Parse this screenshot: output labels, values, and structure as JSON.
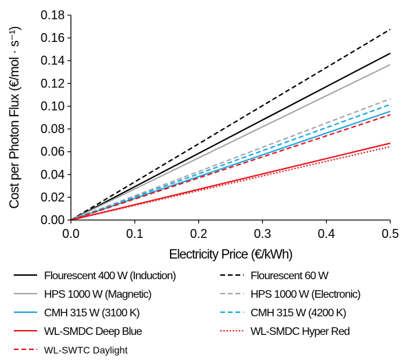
{
  "chart_data": {
    "type": "line",
    "xlabel": "Electricity Price (€/kWh)",
    "ylabel": "Cost per Photon Flux (€/mol · s⁻¹)",
    "xlim": [
      0,
      0.5
    ],
    "ylim": [
      0,
      0.18
    ],
    "x_ticks": [
      "0.0",
      "0.1",
      "0.2",
      "0.3",
      "0.4",
      "0.5"
    ],
    "y_ticks": [
      "0.00",
      "0.02",
      "0.04",
      "0.06",
      "0.08",
      "0.10",
      "0.12",
      "0.14",
      "0.16",
      "0.18"
    ],
    "grid": false,
    "legend_position": "bottom",
    "series": [
      {
        "name": "Flourescent 400 W (Induction)",
        "color": "#000000",
        "dash": "solid",
        "x": [
          0,
          0.5
        ],
        "y": [
          0,
          0.1465
        ]
      },
      {
        "name": "Flourescent 60 W",
        "color": "#000000",
        "dash": "dashed",
        "x": [
          0,
          0.5
        ],
        "y": [
          0,
          0.1675
        ]
      },
      {
        "name": "HPS 1000 W (Magnetic)",
        "color": "#a6a6a6",
        "dash": "solid",
        "x": [
          0,
          0.5
        ],
        "y": [
          0,
          0.1365
        ]
      },
      {
        "name": "HPS 1000 W (Electronic)",
        "color": "#a6a6a6",
        "dash": "dashed",
        "x": [
          0,
          0.5
        ],
        "y": [
          0,
          0.1065
        ]
      },
      {
        "name": "CMH 315 W (3100 K)",
        "color": "#1aa6e0",
        "dash": "solid",
        "x": [
          0,
          0.5
        ],
        "y": [
          0,
          0.0955
        ]
      },
      {
        "name": "CMH 315 W (4200 K)",
        "color": "#1aa6e0",
        "dash": "dashed",
        "x": [
          0,
          0.5
        ],
        "y": [
          0,
          0.1015
        ]
      },
      {
        "name": "WL-SMDC Deep Blue",
        "color": "#e8141b",
        "dash": "solid",
        "x": [
          0,
          0.5
        ],
        "y": [
          0,
          0.0675
        ]
      },
      {
        "name": "WL-SMDC Hyper Red",
        "color": "#e8141b",
        "dash": "dotted",
        "x": [
          0,
          0.5
        ],
        "y": [
          0,
          0.0645
        ]
      },
      {
        "name": "WL-SWTC Daylight",
        "color": "#e8141b",
        "dash": "dashed",
        "x": [
          0,
          0.5
        ],
        "y": [
          0,
          0.0925
        ]
      }
    ]
  }
}
